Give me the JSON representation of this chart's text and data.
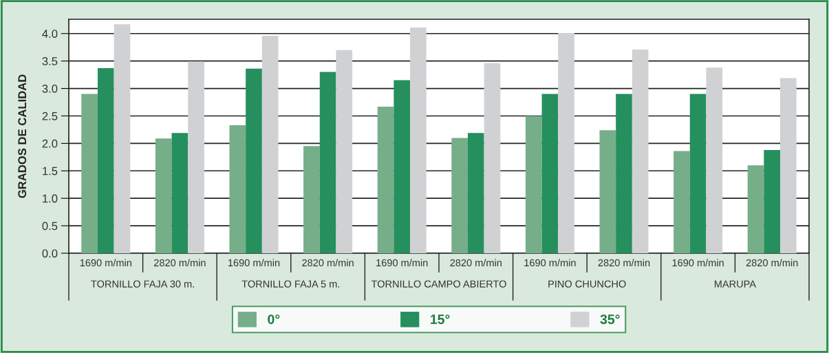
{
  "chart_data": {
    "type": "bar",
    "ylabel": "GRADOS DE CALIDAD",
    "categories": [
      "1690 m/min",
      "2820 m/min",
      "1690 m/min",
      "2820 m/min",
      "1690 m/min",
      "2820 m/min",
      "1690 m/min",
      "2820 m/min",
      "1690 m/min",
      "2820 m/min"
    ],
    "annotations": [
      "TORNILLO FAJA 30 m.",
      "TORNILLO FAJA 5 m.",
      "TORNILLO CAMPO ABIERTO",
      "PINO CHUNCHO",
      "MARUPA"
    ],
    "series": [
      {
        "name": "0°",
        "color": "#77ae8a",
        "values": [
          2.9,
          2.09,
          2.33,
          1.95,
          2.67,
          2.1,
          2.5,
          2.24,
          1.86,
          1.6
        ]
      },
      {
        "name": "15°",
        "color": "#268f5e",
        "values": [
          3.37,
          2.19,
          3.36,
          3.3,
          3.15,
          2.19,
          2.9,
          2.9,
          2.9,
          1.88
        ]
      },
      {
        "name": "35°",
        "color": "#d0d1d3",
        "values": [
          4.17,
          3.49,
          3.96,
          3.7,
          4.11,
          3.46,
          4.01,
          3.71,
          3.38,
          3.19
        ]
      }
    ],
    "ylim": [
      0,
      4.26
    ],
    "yticks": [
      {
        "value": 0,
        "label": "0.0"
      },
      {
        "value": 0.5,
        "label": "0.5"
      },
      {
        "value": 1,
        "label": "1.0"
      },
      {
        "value": 1.5,
        "label": "1.5"
      },
      {
        "value": 2,
        "label": "2.0"
      },
      {
        "value": 2.5,
        "label": "2.5"
      },
      {
        "value": 3,
        "label": "3.0"
      },
      {
        "value": 3.5,
        "label": "3.5"
      },
      {
        "value": 4,
        "label": "4.0"
      }
    ],
    "grid": "y",
    "legend": "bottom"
  }
}
